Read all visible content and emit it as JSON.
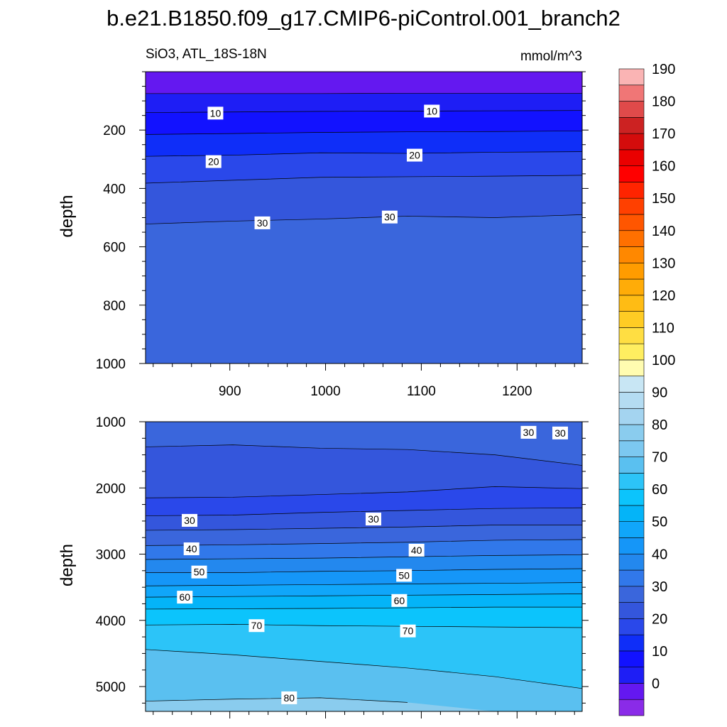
{
  "chart_data": {
    "type": "contour",
    "title": "b.e21.B1850.f09_g17.CMIP6-piControl.001_branch2",
    "subtitle_left": "SiO3, ATL_18S-18N",
    "subtitle_right": "mmol/m^3",
    "xaxis": {
      "range": [
        812,
        1268
      ],
      "ticks": [
        900,
        1000,
        1100,
        1200
      ],
      "minor_step": 20,
      "tick_labels": [
        "900",
        "1000",
        "1100",
        "1200"
      ]
    },
    "panels": [
      {
        "name": "upper",
        "ylabel": "depth",
        "yrange": [
          0,
          1000
        ],
        "yticks": [
          200,
          400,
          600,
          800,
          1000
        ],
        "ytick_labels": [
          "200",
          "400",
          "600",
          "800",
          "1000"
        ],
        "yminor_step": 50,
        "show_x_labels": true,
        "background_level": 30,
        "top_level": 0,
        "contours": [
          {
            "level": 5,
            "depth": [
              75,
              75,
              75,
              74,
              74,
              74
            ]
          },
          {
            "level": 10,
            "depth": [
              140,
              138,
              136,
              135,
              134,
              133
            ]
          },
          {
            "level": 15,
            "depth": [
              215,
              212,
              208,
              206,
              205,
              203
            ]
          },
          {
            "level": 20,
            "depth": [
              290,
              286,
              278,
              280,
              276,
              274
            ]
          },
          {
            "level": 25,
            "depth": [
              382,
              372,
              362,
              360,
              358,
              355
            ]
          },
          {
            "level": 30,
            "depth": [
              522,
              512,
              505,
              495,
              500,
              490
            ]
          }
        ],
        "labels": [
          {
            "text": "10",
            "x": 885,
            "y": 142
          },
          {
            "text": "10",
            "x": 1111,
            "y": 135
          },
          {
            "text": "20",
            "x": 883,
            "y": 308
          },
          {
            "text": "20",
            "x": 1093,
            "y": 286
          },
          {
            "text": "30",
            "x": 934,
            "y": 518
          },
          {
            "text": "30",
            "x": 1067,
            "y": 498
          }
        ]
      },
      {
        "name": "lower",
        "ylabel": "depth",
        "yrange": [
          1000,
          5375
        ],
        "yticks": [
          1000,
          2000,
          3000,
          4000,
          5000
        ],
        "ytick_labels": [
          "1000",
          "2000",
          "3000",
          "4000",
          "5000"
        ],
        "yminor_step": 250,
        "show_x_labels": false,
        "background_level": 80,
        "top_level": 30,
        "contours": [
          {
            "level": 25,
            "depth": [
              1380,
              1350,
              1400,
              1420,
              1500,
              1660
            ]
          },
          {
            "level": 20,
            "depth": [
              2150,
              2140,
              2100,
              2060,
              1980,
              2010
            ]
          },
          {
            "level": 25,
            "depth": [
              2420,
              2410,
              2370,
              2340,
              2310,
              2300
            ]
          },
          {
            "level": 30,
            "depth": [
              2640,
              2630,
              2610,
              2590,
              2560,
              2560
            ]
          },
          {
            "level": 35,
            "depth": [
              2870,
              2860,
              2840,
              2820,
              2790,
              2780
            ]
          },
          {
            "level": 40,
            "depth": [
              3080,
              3070,
              3060,
              3040,
              3020,
              3010
            ]
          },
          {
            "level": 45,
            "depth": [
              3280,
              3280,
              3260,
              3250,
              3230,
              3220
            ]
          },
          {
            "level": 50,
            "depth": [
              3480,
              3470,
              3460,
              3450,
              3440,
              3430
            ]
          },
          {
            "level": 55,
            "depth": [
              3650,
              3640,
              3630,
              3620,
              3610,
              3600
            ]
          },
          {
            "level": 60,
            "depth": [
              3830,
              3825,
              3820,
              3810,
              3800,
              3800
            ]
          },
          {
            "level": 65,
            "depth": [
              4070,
              4060,
              4080,
              4090,
              4100,
              4110
            ]
          },
          {
            "level": 70,
            "depth": [
              4440,
              4520,
              4620,
              4720,
              4850,
              5030
            ]
          },
          {
            "level": 75,
            "depth": [
              5220,
              5190,
              5170,
              5240,
              5375,
              5375
            ]
          }
        ],
        "labels": [
          {
            "text": "30",
            "x": 1212,
            "y": 1160
          },
          {
            "text": "30",
            "x": 1245,
            "y": 1170
          },
          {
            "text": "30",
            "x": 858,
            "y": 2490
          },
          {
            "text": "30",
            "x": 1050,
            "y": 2470
          },
          {
            "text": "40",
            "x": 860,
            "y": 2920
          },
          {
            "text": "40",
            "x": 1095,
            "y": 2940
          },
          {
            "text": "50",
            "x": 868,
            "y": 3270
          },
          {
            "text": "50",
            "x": 1082,
            "y": 3320
          },
          {
            "text": "60",
            "x": 853,
            "y": 3650
          },
          {
            "text": "60",
            "x": 1077,
            "y": 3700
          },
          {
            "text": "70",
            "x": 928,
            "y": 4080
          },
          {
            "text": "70",
            "x": 1086,
            "y": 4160
          },
          {
            "text": "80",
            "x": 962,
            "y": 5170
          }
        ]
      }
    ],
    "colorbar": {
      "levels": [
        -5,
        0,
        5,
        10,
        15,
        20,
        25,
        30,
        35,
        40,
        45,
        50,
        55,
        60,
        65,
        70,
        75,
        80,
        85,
        90,
        95,
        100,
        105,
        110,
        115,
        120,
        125,
        130,
        135,
        140,
        145,
        150,
        155,
        160,
        165,
        170,
        175,
        180,
        185,
        190
      ],
      "colors": [
        "#8a2be8",
        "#6418f0",
        "#1e1ef5",
        "#1212ff",
        "#0f2ef8",
        "#2a48ea",
        "#3456dc",
        "#3a66dc",
        "#3178ea",
        "#2388ee",
        "#1596f8",
        "#10a6fa",
        "#04b4f8",
        "#0cc4fc",
        "#2cc4f8",
        "#5ac0f0",
        "#7cc8f0",
        "#8accee",
        "#a4d4f0",
        "#b4dcf2",
        "#c8e6f4",
        "#fffcb0",
        "#ffee60",
        "#ffde42",
        "#ffcc24",
        "#ffbc14",
        "#ffac08",
        "#ff9c00",
        "#ff8800",
        "#ff7000",
        "#ff5600",
        "#ff4000",
        "#ff2400",
        "#ff0000",
        "#ea0000",
        "#d40c0c",
        "#cc2222",
        "#e04a4a",
        "#f07676",
        "#fab4b4"
      ],
      "tick_labels": [
        "0",
        "10",
        "20",
        "30",
        "40",
        "50",
        "60",
        "70",
        "80",
        "90",
        "100",
        "110",
        "120",
        "130",
        "140",
        "150",
        "160",
        "170",
        "180",
        "190"
      ]
    }
  }
}
